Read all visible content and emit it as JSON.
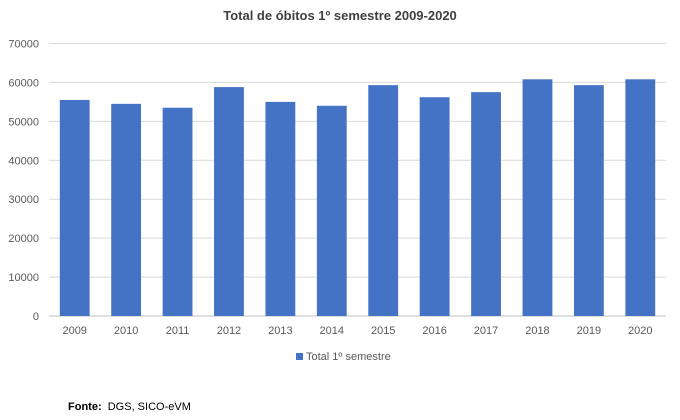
{
  "chart_data": {
    "type": "bar",
    "title": "Total de óbitos 1º semestre 2009-2020",
    "categories": [
      "2009",
      "2010",
      "2011",
      "2012",
      "2013",
      "2014",
      "2015",
      "2016",
      "2017",
      "2018",
      "2019",
      "2020"
    ],
    "series": [
      {
        "name": "Total 1º semestre",
        "values": [
          55500,
          54500,
          53500,
          58800,
          55000,
          54000,
          59300,
          56200,
          57500,
          60800,
          59300,
          60800
        ]
      }
    ],
    "xlabel": "",
    "ylabel": "",
    "ylim": [
      0,
      70000
    ],
    "yticks": [
      0,
      10000,
      20000,
      30000,
      40000,
      50000,
      60000,
      70000
    ],
    "grid": true,
    "legend": "bottom",
    "color": "#4472c4"
  },
  "source": {
    "label": "Fonte:",
    "text": "DGS, SICO-eVM"
  }
}
